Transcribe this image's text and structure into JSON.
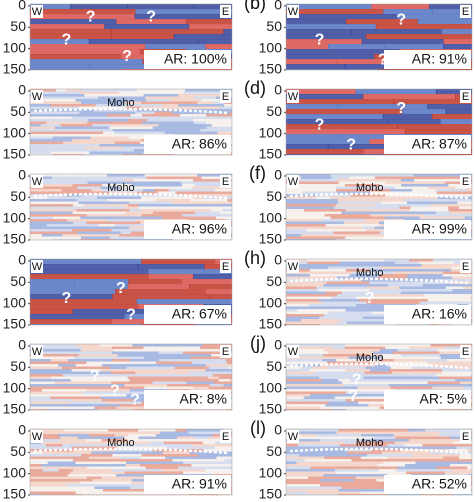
{
  "panels": [
    {
      "label": null,
      "yticks": [
        0,
        50,
        100,
        150
      ],
      "west": "W",
      "east": "E",
      "moho": null,
      "marks": [
        "?",
        "?",
        "?",
        "?"
      ],
      "ar": "AR: 100%"
    },
    {
      "label": "(b)",
      "yticks": [
        0,
        50,
        100,
        150
      ],
      "west": "W",
      "east": "E",
      "moho": null,
      "marks": [
        "?",
        "?",
        "?"
      ],
      "ar": "AR: 91%"
    },
    {
      "label": null,
      "yticks": [
        0,
        50,
        100,
        150
      ],
      "west": "W",
      "east": "E",
      "moho": "Moho",
      "marks": [],
      "ar": "AR: 86%"
    },
    {
      "label": "(d)",
      "yticks": [
        0,
        50,
        100,
        150
      ],
      "west": "W",
      "east": "E",
      "moho": null,
      "marks": [
        "?",
        "?",
        "?"
      ],
      "ar": "AR: 87%"
    },
    {
      "label": null,
      "yticks": [
        0,
        50,
        100,
        150
      ],
      "west": "W",
      "east": "E",
      "moho": "Moho",
      "marks": [],
      "ar": "AR: 96%"
    },
    {
      "label": "(f)",
      "yticks": [
        0,
        50,
        100,
        150
      ],
      "west": "W",
      "east": "E",
      "moho": "Moho",
      "marks": [],
      "ar": "AR: 99%"
    },
    {
      "label": null,
      "yticks": [
        0,
        50,
        100,
        150
      ],
      "west": "W",
      "east": "E",
      "moho": null,
      "marks": [
        "?",
        "?",
        "?"
      ],
      "ar": "AR: 67%"
    },
    {
      "label": "(h)",
      "yticks": [
        0,
        50,
        100,
        150
      ],
      "west": "W",
      "east": "E",
      "moho": "Moho",
      "marks": [
        "?",
        "?"
      ],
      "ar": "AR: 16%"
    },
    {
      "label": null,
      "yticks": [
        0,
        50,
        100,
        150
      ],
      "west": "W",
      "east": "E",
      "moho": null,
      "marks": [
        "?",
        "?",
        "?"
      ],
      "ar": "AR: 8%"
    },
    {
      "label": "(j)",
      "yticks": [
        0,
        50,
        100,
        150
      ],
      "west": "W",
      "east": "E",
      "moho": "Moho",
      "marks": [
        "?",
        "?"
      ],
      "ar": "AR: 5%"
    },
    {
      "label": null,
      "yticks": [
        0,
        50,
        100,
        150
      ],
      "west": "W",
      "east": "E",
      "moho": "Moho",
      "marks": [],
      "ar": "AR: 91%"
    },
    {
      "label": "(l)",
      "yticks": [
        0,
        50,
        100,
        150
      ],
      "west": "W",
      "east": "E",
      "moho": "Moho",
      "marks": [],
      "ar": "AR: 52%"
    }
  ]
}
